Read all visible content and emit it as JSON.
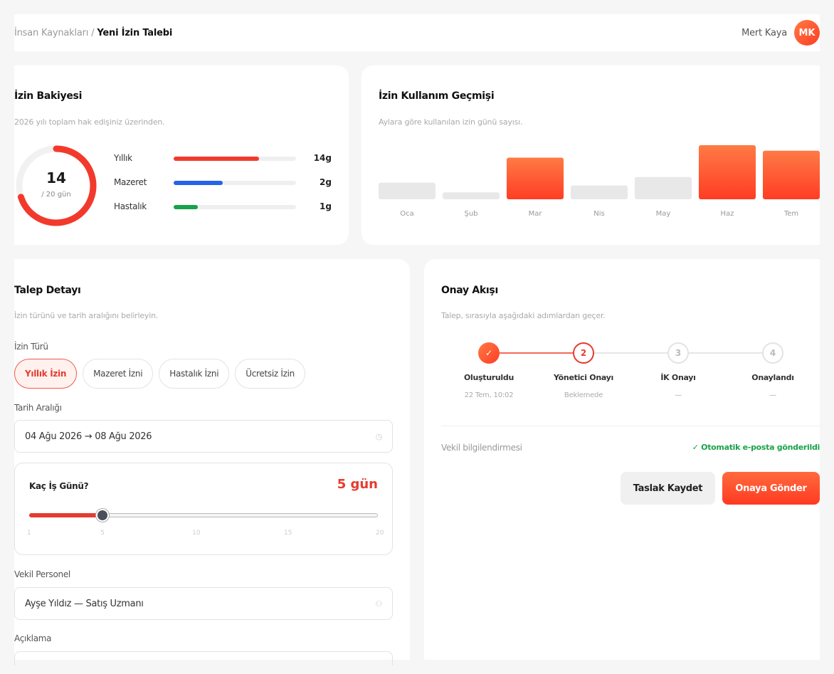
{
  "header": {
    "breadcrumb_parent": "İnsan Kaynakları",
    "breadcrumb_sep": "/",
    "breadcrumb_current": "Yeni İzin Talebi",
    "user_name": "Mert Kaya",
    "user_initials": "MK"
  },
  "balance": {
    "title": "İzin Bakiyesi",
    "subtitle": "2026 yılı toplam hak edişiniz üzerinden.",
    "remaining": "14",
    "total": "/ 20 gün",
    "remaining_fraction": 0.7,
    "rows": [
      {
        "label": "Yıllık",
        "amount": "14g",
        "fraction": 0.7,
        "color": "#f23a2c"
      },
      {
        "label": "Mazeret",
        "amount": "2g",
        "fraction": 0.4,
        "color": "#2563eb"
      },
      {
        "label": "Hastalık",
        "amount": "1g",
        "fraction": 0.2,
        "color": "#16a34a"
      }
    ]
  },
  "history": {
    "title": "İzin Kullanım Geçmişi",
    "subtitle": "Aylara göre kullanılan izin günü sayısı."
  },
  "chart_data": {
    "type": "bar",
    "categories": [
      "Oca",
      "Şub",
      "Mar",
      "Nis",
      "May",
      "Haz",
      "Tem"
    ],
    "values": [
      1.2,
      0.5,
      3,
      1,
      1.6,
      3.9,
      3.5
    ],
    "highlight": [
      false,
      false,
      true,
      false,
      false,
      true,
      true
    ],
    "ylim": [
      0,
      4
    ],
    "grid": false,
    "colors": {
      "muted": "#e8e8e8",
      "accent_top": "#ff7a45",
      "accent_bottom": "#ff3d24"
    }
  },
  "request": {
    "title": "Talep Detayı",
    "subtitle": "İzin türünü ve tarih aralığını belirleyin.",
    "type_label": "İzin Türü",
    "types": [
      "Yıllık İzin",
      "Mazeret İzni",
      "Hastalık İzni",
      "Ücretsiz İzin"
    ],
    "selected_type": "Yıllık İzin",
    "date_label": "Tarih Aralığı",
    "date_value": "04 Ağu 2026 → 08 Ağu 2026",
    "days_question": "Kaç İş Günü?",
    "days_value": "5 gün",
    "slider": {
      "min": 1,
      "max": 20,
      "value": 5,
      "ticks": [
        "1",
        "5",
        "10",
        "15",
        "20"
      ]
    },
    "substitute_label": "Vekil Personel",
    "substitute_value": "Ayşe Yıldız — Satış Uzmanı",
    "description_label": "Açıklama"
  },
  "approval": {
    "title": "Onay Akışı",
    "subtitle": "Talep, sırasıyla aşağıdaki adımlardan geçer.",
    "steps": [
      {
        "label": "Oluşturuldu",
        "meta": "22 Tem, 10:02",
        "marker": "✓",
        "state": "done"
      },
      {
        "label": "Yönetici Onayı",
        "meta": "Beklemede",
        "marker": "2",
        "state": "current"
      },
      {
        "label": "İK Onayı",
        "meta": "—",
        "marker": "3",
        "state": "pending"
      },
      {
        "label": "Onaylandı",
        "meta": "—",
        "marker": "4",
        "state": "pending"
      }
    ],
    "notice_label": "Vekil bilgilendirmesi",
    "notice_status": "✓ Otomatik e-posta gönderildi",
    "draft_button": "Taslak Kaydet",
    "send_button": "Onaya Gönder"
  }
}
